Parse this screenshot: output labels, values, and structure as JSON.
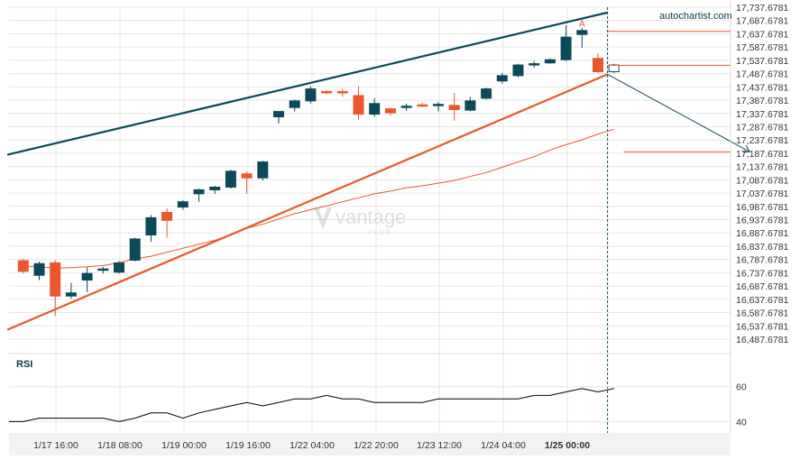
{
  "brand": {
    "source": "autochartist.com",
    "watermark_main": "vantage",
    "watermark_sub": "PLUS"
  },
  "colors": {
    "bull": "#0c4a5a",
    "bear": "#e8582c",
    "grid": "#e6e6e6",
    "axis_text": "#333333",
    "trend_upper": "#0c4a5a",
    "trend_lower": "#e8582c",
    "ma": "#e8582c",
    "rsi": "#000000",
    "forecast": "#0c4a5a",
    "xaxis_band": "#f2f2f2"
  },
  "chart_data": [
    {
      "type": "candlestick",
      "title": "",
      "ylim": [
        16487.6781,
        17737.6781
      ],
      "y_ticks": [
        "17,737.6781",
        "17,687.6781",
        "17,637.6781",
        "17,587.6781",
        "17,537.6781",
        "17,487.6781",
        "17,437.6781",
        "17,387.6781",
        "17,337.6781",
        "17,287.6781",
        "17,237.6781",
        "17,187.6781",
        "17,137.6781",
        "17,087.6781",
        "17,037.6781",
        "16,987.6781",
        "16,937.6781",
        "16,887.6781",
        "16,837.6781",
        "16,787.6781",
        "16,737.6781",
        "16,687.6781",
        "16,637.6781",
        "16,587.6781",
        "16,537.6781",
        "16,487.6781"
      ],
      "x_ticks": [
        "1/17 16:00",
        "1/18 08:00",
        "1/19 00:00",
        "1/19 16:00",
        "1/22 04:00",
        "1/22 20:00",
        "1/23 12:00",
        "1/24 04:00",
        "1/25 00:00"
      ],
      "candles": [
        {
          "o": 16783,
          "h": 16790,
          "l": 16735,
          "c": 16743
        },
        {
          "o": 16728,
          "h": 16780,
          "l": 16710,
          "c": 16772
        },
        {
          "o": 16775,
          "h": 16785,
          "l": 16575,
          "c": 16650
        },
        {
          "o": 16650,
          "h": 16700,
          "l": 16640,
          "c": 16662
        },
        {
          "o": 16710,
          "h": 16758,
          "l": 16665,
          "c": 16735
        },
        {
          "o": 16752,
          "h": 16760,
          "l": 16735,
          "c": 16752
        },
        {
          "o": 16740,
          "h": 16782,
          "l": 16735,
          "c": 16775
        },
        {
          "o": 16785,
          "h": 16870,
          "l": 16780,
          "c": 16865
        },
        {
          "o": 16880,
          "h": 16955,
          "l": 16855,
          "c": 16945
        },
        {
          "o": 16965,
          "h": 16980,
          "l": 16870,
          "c": 16935
        },
        {
          "o": 16985,
          "h": 17010,
          "l": 16975,
          "c": 17005
        },
        {
          "o": 17035,
          "h": 17055,
          "l": 17005,
          "c": 17050
        },
        {
          "o": 17050,
          "h": 17065,
          "l": 17035,
          "c": 17060
        },
        {
          "o": 17060,
          "h": 17125,
          "l": 17055,
          "c": 17120
        },
        {
          "o": 17110,
          "h": 17120,
          "l": 17035,
          "c": 17095
        },
        {
          "o": 17095,
          "h": 17160,
          "l": 17085,
          "c": 17155
        },
        {
          "o": 17325,
          "h": 17340,
          "l": 17300,
          "c": 17345
        },
        {
          "o": 17360,
          "h": 17390,
          "l": 17345,
          "c": 17385
        },
        {
          "o": 17385,
          "h": 17440,
          "l": 17375,
          "c": 17430
        },
        {
          "o": 17420,
          "h": 17425,
          "l": 17410,
          "c": 17415
        },
        {
          "o": 17420,
          "h": 17430,
          "l": 17400,
          "c": 17415
        },
        {
          "o": 17405,
          "h": 17440,
          "l": 17315,
          "c": 17335
        },
        {
          "o": 17335,
          "h": 17395,
          "l": 17325,
          "c": 17375
        },
        {
          "o": 17355,
          "h": 17360,
          "l": 17330,
          "c": 17340
        },
        {
          "o": 17365,
          "h": 17375,
          "l": 17348,
          "c": 17365
        },
        {
          "o": 17370,
          "h": 17378,
          "l": 17362,
          "c": 17368
        },
        {
          "o": 17372,
          "h": 17380,
          "l": 17345,
          "c": 17372
        },
        {
          "o": 17368,
          "h": 17415,
          "l": 17310,
          "c": 17352
        },
        {
          "o": 17350,
          "h": 17400,
          "l": 17345,
          "c": 17385
        },
        {
          "o": 17395,
          "h": 17435,
          "l": 17390,
          "c": 17430
        },
        {
          "o": 17460,
          "h": 17490,
          "l": 17450,
          "c": 17480
        },
        {
          "o": 17480,
          "h": 17525,
          "l": 17475,
          "c": 17520
        },
        {
          "o": 17520,
          "h": 17535,
          "l": 17510,
          "c": 17525
        },
        {
          "o": 17528,
          "h": 17545,
          "l": 17525,
          "c": 17540
        },
        {
          "o": 17540,
          "h": 17670,
          "l": 17535,
          "c": 17625
        },
        {
          "o": 17635,
          "h": 17660,
          "l": 17585,
          "c": 17650
        },
        {
          "o": 17545,
          "h": 17565,
          "l": 17490,
          "c": 17495
        },
        {
          "o": 17495,
          "h": 17525,
          "l": 17490,
          "c": 17520
        }
      ],
      "moving_average": [
        16763,
        16760,
        16755,
        16757,
        16760,
        16765,
        16775,
        16790,
        16800,
        16815,
        16830,
        16845,
        16860,
        16880,
        16905,
        16920,
        16940,
        16960,
        16975,
        16990,
        17005,
        17020,
        17035,
        17045,
        17058,
        17065,
        17075,
        17085,
        17100,
        17115,
        17135,
        17155,
        17175,
        17200,
        17220,
        17238,
        17260,
        17278
      ],
      "annotations": {
        "resistance_line": [
          [
            -1,
            17182.1
          ],
          [
            36.6,
            17717.7
          ]
        ],
        "support_line": [
          [
            -1,
            16523
          ],
          [
            36.6,
            17485
          ]
        ],
        "resistance_level": 17647,
        "support_level": 17519,
        "target_level": 17193,
        "forecast_arrow": [
          [
            36.6,
            17485
          ],
          [
            45.5,
            17193
          ]
        ],
        "event_index": 36.6,
        "event_marker": "A"
      }
    },
    {
      "type": "line",
      "title": "RSI",
      "ylim": [
        33.5,
        79
      ],
      "y_ticks": [
        "60",
        "40"
      ],
      "values": [
        40,
        42,
        42,
        42,
        42,
        42,
        40,
        42,
        45,
        45,
        42,
        45,
        47,
        49,
        51,
        49,
        51,
        53,
        53,
        55,
        53,
        53,
        51,
        51,
        51,
        51,
        53,
        53,
        53,
        53,
        53,
        53,
        55,
        55,
        57,
        59,
        57,
        59
      ]
    }
  ]
}
